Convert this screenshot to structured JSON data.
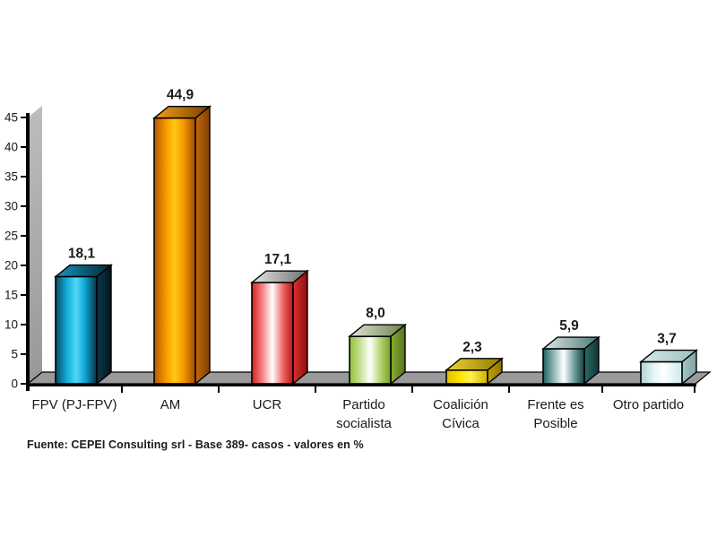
{
  "page": {
    "background": "#ffffff"
  },
  "chart_data": {
    "type": "bar",
    "style": "3d-column",
    "title": "",
    "xlabel": "",
    "ylabel": "",
    "categories": [
      "FPV (PJ-FPV)",
      "AM",
      "UCR",
      "Partido socialista",
      "Coalición Cívica",
      "Frente es Posible",
      "Otro partido"
    ],
    "category_lines": [
      [
        "FPV (PJ-FPV)"
      ],
      [
        "AM"
      ],
      [
        "UCR"
      ],
      [
        "Partido",
        "socialista"
      ],
      [
        "Coalición",
        "Cívica"
      ],
      [
        "Frente es",
        "Posible"
      ],
      [
        "Otro partido"
      ]
    ],
    "values": [
      18.1,
      44.9,
      17.1,
      8.0,
      2.3,
      5.9,
      3.7
    ],
    "value_labels": [
      "18,1",
      "44,9",
      "17,1",
      "8,0",
      "2,3",
      "5,9",
      "3,7"
    ],
    "ylim": [
      0,
      45
    ],
    "yticks": [
      0,
      5,
      10,
      15,
      20,
      25,
      30,
      35,
      40,
      45
    ],
    "grid": false,
    "legend": "none",
    "decimal_separator": ",",
    "source_note": "Fuente: CEPEI Consulting srl - Base 389- casos -  valores en %",
    "text_color": "#1a1a1a",
    "outline_color": "#000000",
    "wall_color_top": "#bdbdbd",
    "wall_color_bottom": "#989898",
    "floor_color": "#9a9a9a",
    "bar_styles": [
      {
        "name": "fpv-pj-fpv",
        "front": [
          [
            0,
            "#0b4c66"
          ],
          [
            0.3,
            "#17b2e2"
          ],
          [
            0.5,
            "#52d6f5"
          ],
          [
            0.7,
            "#12a9d9"
          ],
          [
            1,
            "#073043"
          ]
        ],
        "side": [
          [
            0,
            "#0b3a4a"
          ],
          [
            1,
            "#03161f"
          ]
        ],
        "top": [
          [
            0,
            "#1596c2"
          ],
          [
            1,
            "#042733"
          ]
        ]
      },
      {
        "name": "am",
        "front": [
          [
            0,
            "#b85800"
          ],
          [
            0.3,
            "#f99c00"
          ],
          [
            0.5,
            "#ffc912"
          ],
          [
            0.7,
            "#f99c00"
          ],
          [
            1,
            "#a04c00"
          ]
        ],
        "side": [
          [
            0,
            "#c46a0a"
          ],
          [
            1,
            "#7e3f02"
          ]
        ],
        "top": [
          [
            0,
            "#f2a018"
          ],
          [
            1,
            "#7a3e00"
          ]
        ]
      },
      {
        "name": "ucr",
        "front": [
          [
            0,
            "#d42222"
          ],
          [
            0.25,
            "#f58080"
          ],
          [
            0.5,
            "#ffffff"
          ],
          [
            0.75,
            "#f06868"
          ],
          [
            1,
            "#b31414"
          ]
        ],
        "side": [
          [
            0,
            "#d93333"
          ],
          [
            1,
            "#8f0d0d"
          ]
        ],
        "top": [
          [
            0,
            "#e6e6e6"
          ],
          [
            1,
            "#6e6e6e"
          ]
        ]
      },
      {
        "name": "partido-socialista",
        "front": [
          [
            0,
            "#8fc138"
          ],
          [
            0.25,
            "#c4de8e"
          ],
          [
            0.5,
            "#ffffff"
          ],
          [
            0.75,
            "#b4d470"
          ],
          [
            1,
            "#76a026"
          ]
        ],
        "side": [
          [
            0,
            "#86ad35"
          ],
          [
            1,
            "#55731a"
          ]
        ],
        "top": [
          [
            0,
            "#e0e5d8"
          ],
          [
            1,
            "#6f8049"
          ]
        ]
      },
      {
        "name": "coalicion-civica",
        "front": [
          [
            0,
            "#dfc100"
          ],
          [
            0.35,
            "#ffe600"
          ],
          [
            0.6,
            "#fff04d"
          ],
          [
            1,
            "#cfae00"
          ]
        ],
        "side": [
          [
            0,
            "#c2a400"
          ],
          [
            1,
            "#8a7400"
          ]
        ],
        "top": [
          [
            0,
            "#ecd534"
          ],
          [
            1,
            "#8f7a00"
          ]
        ]
      },
      {
        "name": "frente-es-posible",
        "front": [
          [
            0,
            "#1e5f5e"
          ],
          [
            0.25,
            "#8fb5b3"
          ],
          [
            0.5,
            "#ffffff"
          ],
          [
            0.75,
            "#6fa09e"
          ],
          [
            1,
            "#133f3e"
          ]
        ],
        "side": [
          [
            0,
            "#2b6c6b"
          ],
          [
            1,
            "#0f3534"
          ]
        ],
        "top": [
          [
            0,
            "#dfe9e8"
          ],
          [
            1,
            "#4a7877"
          ]
        ]
      },
      {
        "name": "otro-partido",
        "front": [
          [
            0,
            "#aed3d3"
          ],
          [
            0.3,
            "#e2f4f4"
          ],
          [
            0.55,
            "#ffffff"
          ],
          [
            1,
            "#cfe9e9"
          ]
        ],
        "side": [
          [
            0,
            "#a3c6c6"
          ],
          [
            1,
            "#7fa3a3"
          ]
        ],
        "top": [
          [
            0,
            "#d6eaea"
          ],
          [
            1,
            "#9cbfbf"
          ]
        ]
      }
    ]
  }
}
